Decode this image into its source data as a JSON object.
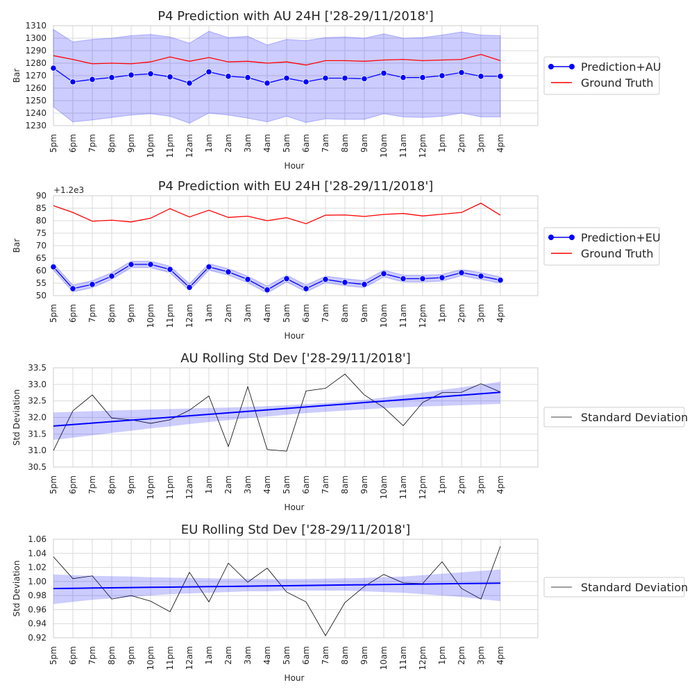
{
  "chart_data": [
    {
      "type": "line",
      "title": "P4 Prediction with AU 24H ['28-29/11/2018']",
      "xlabel": "Hour",
      "ylabel": "Bar",
      "categories": [
        "5pm",
        "6pm",
        "7pm",
        "8pm",
        "9pm",
        "10pm",
        "11pm",
        "12am",
        "1am",
        "2am",
        "3am",
        "4am",
        "5am",
        "6am",
        "7am",
        "8am",
        "9am",
        "10am",
        "11am",
        "12pm",
        "1pm",
        "2pm",
        "3pm",
        "4pm"
      ],
      "ylim": [
        1230,
        1310
      ],
      "yticks": [
        1230,
        1240,
        1250,
        1260,
        1270,
        1280,
        1290,
        1300,
        1310
      ],
      "grid": true,
      "legend_position": "right",
      "series": [
        {
          "name": "Prediction+AU",
          "color": "#0000ff",
          "marker": "circle",
          "values": [
            1276,
            1265,
            1267,
            1268.5,
            1270.5,
            1271.5,
            1269,
            1264,
            1273,
            1269.5,
            1268.5,
            1264,
            1268,
            1265,
            1268,
            1268,
            1267.5,
            1272,
            1268.5,
            1268.5,
            1270,
            1272.5,
            1269.5,
            1269.5
          ],
          "band_upper": [
            1307,
            1297,
            1299,
            1300,
            1302,
            1303,
            1301,
            1296,
            1305.5,
            1300.5,
            1301.5,
            1294.5,
            1299,
            1298,
            1300.5,
            1301,
            1300,
            1303.5,
            1300,
            1300.5,
            1302.5,
            1305,
            1302.5,
            1302
          ],
          "band_lower": [
            1245,
            1233,
            1234.5,
            1236.5,
            1238.5,
            1239.5,
            1237.5,
            1232,
            1240,
            1238.5,
            1236,
            1233,
            1237.5,
            1232.5,
            1235.5,
            1235,
            1235,
            1239.5,
            1237,
            1236.5,
            1237.5,
            1240,
            1237,
            1237
          ]
        },
        {
          "name": "Ground Truth",
          "color": "#ff0000",
          "marker": "none",
          "values": [
            1286,
            1283,
            1279.5,
            1280,
            1279.5,
            1281,
            1285,
            1281.5,
            1284.5,
            1281,
            1281.5,
            1280,
            1281,
            1278.5,
            1282,
            1282,
            1281.5,
            1282.5,
            1283,
            1282,
            1282.5,
            1283,
            1287,
            1282
          ]
        }
      ]
    },
    {
      "type": "line",
      "title": "P4 Prediction with EU 24H ['28-29/11/2018']",
      "xlabel": "Hour",
      "ylabel": "Bar",
      "axis_offset_text": "+1.2e3",
      "categories": [
        "5pm",
        "6pm",
        "7pm",
        "8pm",
        "9pm",
        "10pm",
        "11pm",
        "12am",
        "1am",
        "2am",
        "3am",
        "4am",
        "5am",
        "6am",
        "7am",
        "8am",
        "9am",
        "10am",
        "11am",
        "12pm",
        "1pm",
        "2pm",
        "3pm",
        "4pm"
      ],
      "ylim": [
        50,
        90
      ],
      "yticks": [
        50,
        55,
        60,
        65,
        70,
        75,
        80,
        85,
        90
      ],
      "grid": true,
      "legend_position": "right",
      "series": [
        {
          "name": "Prediction+EU",
          "color": "#0000ff",
          "marker": "circle",
          "values": [
            61.5,
            52.8,
            54.5,
            57.8,
            62.5,
            62.5,
            60.5,
            53.3,
            61.5,
            59.5,
            56.5,
            52.3,
            56.8,
            52.8,
            56.5,
            55.3,
            54.5,
            58.8,
            56.8,
            56.8,
            57.2,
            59.2,
            57.8,
            56.2
          ],
          "band_upper": [
            62.8,
            54.2,
            56,
            59.2,
            63.8,
            63.8,
            61.8,
            54.8,
            62.8,
            60.8,
            57.8,
            53.8,
            58.2,
            54.2,
            57.8,
            56.8,
            56,
            60.2,
            58.2,
            58.2,
            58.5,
            60.5,
            59.2,
            57.5
          ],
          "band_lower": [
            60.2,
            51.5,
            53.2,
            56.5,
            61.2,
            61.2,
            59.2,
            52,
            60.2,
            58.2,
            55.2,
            51,
            55.5,
            51.5,
            55.2,
            54,
            53.2,
            57.5,
            55.5,
            55.5,
            55.8,
            58,
            56.5,
            55
          ]
        },
        {
          "name": "Ground Truth",
          "color": "#ff0000",
          "marker": "none",
          "values": [
            86,
            83.3,
            79.8,
            80.2,
            79.5,
            81,
            84.8,
            81.5,
            84.2,
            81.3,
            81.8,
            80,
            81.2,
            78.8,
            82.2,
            82.3,
            81.7,
            82.5,
            82.9,
            81.9,
            82.6,
            83.3,
            87,
            82.2
          ]
        }
      ]
    },
    {
      "type": "line",
      "title": "AU Rolling Std Dev ['28-29/11/2018']",
      "xlabel": "Hour",
      "ylabel": "Std Deviation",
      "categories": [
        "5pm",
        "6pm",
        "7pm",
        "8pm",
        "9pm",
        "10pm",
        "11pm",
        "12am",
        "1am",
        "2am",
        "3am",
        "4am",
        "5am",
        "6am",
        "7am",
        "8am",
        "9am",
        "10am",
        "11am",
        "12pm",
        "1pm",
        "2pm",
        "3pm",
        "4pm"
      ],
      "ylim": [
        30.5,
        33.5
      ],
      "yticks": [
        30.5,
        31.0,
        31.5,
        32.0,
        32.5,
        33.0,
        33.5
      ],
      "grid": true,
      "legend_position": "right",
      "series": [
        {
          "name": "Standard Deviation",
          "color": "#000000",
          "marker": "none",
          "values": [
            31.0,
            32.2,
            32.68,
            31.98,
            31.93,
            31.82,
            31.93,
            32.22,
            32.65,
            31.12,
            32.93,
            31.03,
            30.98,
            32.8,
            32.88,
            33.31,
            32.68,
            32.3,
            31.75,
            32.45,
            32.75,
            32.76,
            33.02,
            32.77
          ]
        },
        {
          "name": "",
          "color": "#0000ff",
          "marker": "none",
          "role": "regression",
          "values": [
            31.74,
            31.785,
            31.829,
            31.873,
            31.918,
            31.962,
            32.006,
            32.051,
            32.095,
            32.139,
            32.184,
            32.228,
            32.272,
            32.317,
            32.361,
            32.405,
            32.45,
            32.494,
            32.538,
            32.583,
            32.627,
            32.671,
            32.716,
            32.76
          ],
          "band_upper": [
            32.15,
            32.17,
            32.19,
            32.21,
            32.225,
            32.24,
            32.255,
            32.27,
            32.285,
            32.3,
            32.32,
            32.34,
            32.37,
            32.4,
            32.44,
            32.48,
            32.53,
            32.6,
            32.68,
            32.75,
            32.83,
            32.91,
            32.99,
            33.08
          ],
          "band_lower": [
            31.32,
            31.39,
            31.46,
            31.53,
            31.6,
            31.67,
            31.73,
            31.8,
            31.86,
            31.92,
            31.98,
            32.03,
            32.08,
            32.13,
            32.17,
            32.21,
            32.24,
            32.28,
            32.31,
            32.33,
            32.35,
            32.37,
            32.39,
            32.41
          ]
        }
      ]
    },
    {
      "type": "line",
      "title": "EU Rolling Std Dev ['28-29/11/2018']",
      "xlabel": "Hour",
      "ylabel": "Std Deviation",
      "categories": [
        "5pm",
        "6pm",
        "7pm",
        "8pm",
        "9pm",
        "10pm",
        "11pm",
        "12am",
        "1am",
        "2am",
        "3am",
        "4am",
        "5am",
        "6am",
        "7am",
        "8am",
        "9am",
        "10am",
        "11am",
        "12pm",
        "1pm",
        "2pm",
        "3pm",
        "4pm"
      ],
      "ylim": [
        0.92,
        1.06
      ],
      "yticks": [
        0.92,
        0.94,
        0.96,
        0.98,
        1.0,
        1.02,
        1.04,
        1.06
      ],
      "ytick_decimals": 2,
      "grid": true,
      "legend_position": "right",
      "series": [
        {
          "name": "Standard Deviation",
          "color": "#000000",
          "marker": "none",
          "values": [
            1.035,
            1.004,
            1.008,
            0.975,
            0.98,
            0.972,
            0.957,
            1.013,
            0.971,
            1.026,
            0.999,
            1.019,
            0.985,
            0.971,
            0.923,
            0.97,
            0.993,
            1.01,
            0.998,
            0.997,
            1.028,
            0.99,
            0.975,
            1.05
          ]
        },
        {
          "name": "",
          "color": "#0000ff",
          "marker": "none",
          "role": "regression",
          "values": [
            0.99,
            0.9903,
            0.9907,
            0.991,
            0.9913,
            0.9917,
            0.992,
            0.9923,
            0.9927,
            0.993,
            0.9933,
            0.9937,
            0.994,
            0.9943,
            0.9947,
            0.995,
            0.9953,
            0.9957,
            0.996,
            0.9963,
            0.9967,
            0.997,
            0.9973,
            0.9977
          ],
          "band_upper": [
            1.01,
            1.009,
            1.008,
            1.0075,
            1.007,
            1.006,
            1.0055,
            1.005,
            1.0045,
            1.004,
            1.004,
            1.0035,
            1.0035,
            1.0035,
            1.004,
            1.0045,
            1.005,
            1.006,
            1.007,
            1.009,
            1.011,
            1.013,
            1.015,
            1.017
          ],
          "band_lower": [
            0.968,
            0.971,
            0.974,
            0.976,
            0.978,
            0.98,
            0.982,
            0.983,
            0.984,
            0.985,
            0.986,
            0.986,
            0.987,
            0.987,
            0.987,
            0.987,
            0.986,
            0.985,
            0.984,
            0.982,
            0.98,
            0.978,
            0.975,
            0.972
          ]
        }
      ]
    }
  ],
  "colors": {
    "band_fill": "#0000ff",
    "grid": "#d9d9d9",
    "axes_edge": "#cccccc",
    "text": "#262626"
  }
}
